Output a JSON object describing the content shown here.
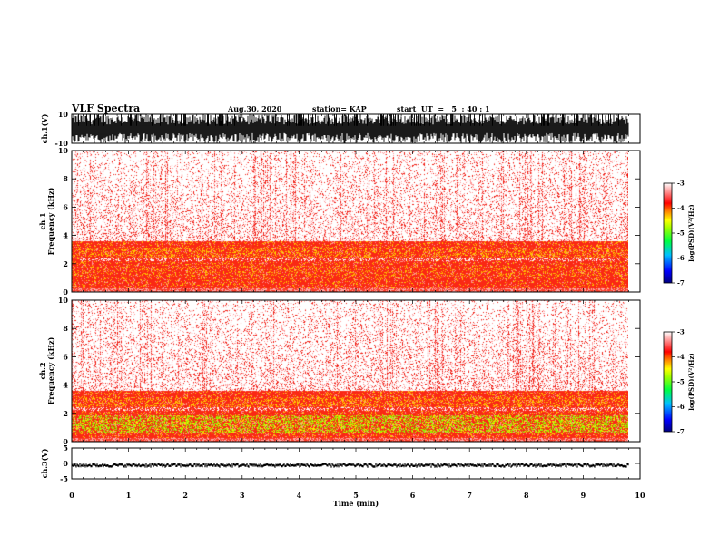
{
  "header": {
    "title": "VLF Spectra",
    "date": "Aug.30, 2020",
    "station": "station= KAP",
    "start": "start  UT  =   5  : 40 : 1"
  },
  "chart_data": [
    {
      "type": "line",
      "name": "ch1-waveform",
      "ylabel": "ch.1(V)",
      "ylim": [
        -10,
        10
      ],
      "yticks": [
        "10",
        "-10"
      ],
      "xlim": [
        0,
        10
      ],
      "x_extent": 9.8
    },
    {
      "type": "heatmap",
      "name": "ch1-spectrogram",
      "ylabel": "ch.1\nFrequency  (kHz)",
      "ylim": [
        0,
        10
      ],
      "yticks": [
        "0",
        "2",
        "4",
        "6",
        "8",
        "10"
      ],
      "xlim": [
        0,
        10
      ],
      "x_extent": 9.8,
      "colorbar": {
        "label": "log(PSD)(V²/Hz)",
        "range": [
          -7,
          -3
        ],
        "ticks": [
          "-3",
          "-4",
          "-5",
          "-6",
          "-7"
        ]
      }
    },
    {
      "type": "heatmap",
      "name": "ch2-spectrogram",
      "ylabel": "ch.2\nFrequency  (kHz)",
      "ylim": [
        0,
        10
      ],
      "yticks": [
        "0",
        "2",
        "4",
        "6",
        "8",
        "10"
      ],
      "xlim": [
        0,
        10
      ],
      "x_extent": 9.8,
      "colorbar": {
        "label": "log(PSD)(V²/Hz)",
        "range": [
          -7,
          -3
        ],
        "ticks": [
          "-3",
          "-4",
          "-5",
          "-6",
          "-7"
        ]
      }
    },
    {
      "type": "line",
      "name": "ch3-waveform",
      "ylabel": "ch.3(V)",
      "ylim": [
        -5,
        5
      ],
      "yticks": [
        "5",
        "0",
        "-5"
      ],
      "level": -0.6,
      "xlim": [
        0,
        10
      ],
      "x_extent": 9.8,
      "xlabel": "Time  (min)",
      "xticks": [
        "0",
        "1",
        "2",
        "3",
        "4",
        "5",
        "6",
        "7",
        "8",
        "9",
        "10"
      ]
    }
  ]
}
